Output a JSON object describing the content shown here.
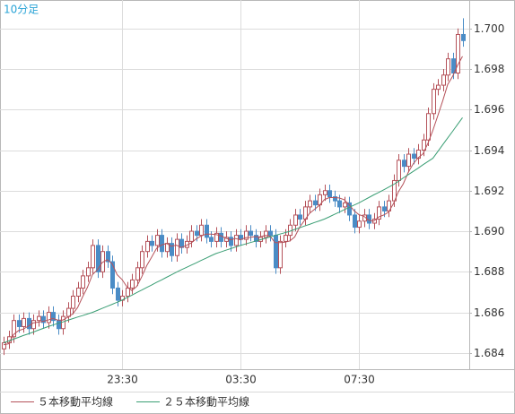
{
  "chart_data": {
    "type": "candlestick",
    "title": "10分足",
    "categories": [
      null,
      null,
      null,
      null,
      null,
      null,
      null,
      null,
      null,
      null,
      null,
      null,
      null,
      null,
      null,
      null,
      null,
      null,
      null,
      null,
      null,
      null,
      null,
      null,
      "23:30",
      null,
      null,
      null,
      null,
      null,
      null,
      null,
      null,
      null,
      null,
      null,
      null,
      null,
      null,
      null,
      null,
      null,
      null,
      null,
      null,
      null,
      null,
      null,
      "03:30",
      null,
      null,
      null,
      null,
      null,
      null,
      null,
      null,
      null,
      null,
      null,
      null,
      null,
      null,
      null,
      null,
      null,
      null,
      null,
      null,
      null,
      null,
      null,
      "07:30",
      null,
      null,
      null,
      null,
      null,
      null,
      null,
      null,
      null,
      null,
      null,
      null,
      null,
      null,
      null,
      null,
      null,
      null,
      null,
      null,
      null
    ],
    "open": [
      1.6842,
      1.6845,
      1.6848,
      1.6856,
      1.6853,
      1.6857,
      1.6852,
      1.6856,
      1.6858,
      1.6855,
      1.686,
      1.6856,
      1.6852,
      1.6858,
      1.6862,
      1.6868,
      1.6872,
      1.6878,
      1.6882,
      1.6893,
      1.688,
      1.689,
      1.6885,
      1.6872,
      1.6866,
      1.6868,
      1.6872,
      1.6876,
      1.6882,
      1.689,
      1.6895,
      1.6893,
      1.6898,
      1.689,
      1.6894,
      1.6888,
      1.6896,
      1.6892,
      1.6895,
      1.69,
      1.6898,
      1.6903,
      1.6897,
      1.6895,
      1.6899,
      1.6895,
      1.6897,
      1.6893,
      1.6898,
      1.6896,
      1.69,
      1.6898,
      1.6895,
      1.6897,
      1.69,
      1.6898,
      1.6882,
      1.6895,
      1.6898,
      1.6903,
      1.6908,
      1.6906,
      1.6912,
      1.6915,
      1.6913,
      1.6918,
      1.692,
      1.6917,
      1.6915,
      1.6912,
      1.6914,
      1.6908,
      1.6902,
      1.6905,
      1.6908,
      1.6904,
      1.6906,
      1.6912,
      1.691,
      1.6915,
      1.6925,
      1.6935,
      1.6932,
      1.6938,
      1.6936,
      1.694,
      1.6945,
      1.6958,
      1.697,
      1.6972,
      1.6977,
      1.6985,
      1.6978,
      1.6997
    ],
    "high": [
      1.6848,
      1.6851,
      1.6859,
      1.6859,
      1.686,
      1.686,
      1.6859,
      1.6861,
      1.6861,
      1.6863,
      1.6863,
      1.6859,
      1.6861,
      1.6865,
      1.6871,
      1.6875,
      1.6881,
      1.6885,
      1.6896,
      1.6896,
      1.6893,
      1.6893,
      1.6888,
      1.6875,
      1.6871,
      1.6875,
      1.6879,
      1.6885,
      1.6893,
      1.6898,
      1.6898,
      1.6901,
      1.6901,
      1.6897,
      1.6897,
      1.6899,
      1.6899,
      1.6898,
      1.6903,
      1.6903,
      1.6906,
      1.6906,
      1.69,
      1.6902,
      1.6902,
      1.69,
      1.69,
      1.6901,
      1.6901,
      1.6903,
      1.6903,
      1.6901,
      1.69,
      1.6903,
      1.6903,
      1.6901,
      1.6898,
      1.6901,
      1.6906,
      1.6911,
      1.6911,
      1.6915,
      1.6918,
      1.6918,
      1.6921,
      1.6923,
      1.6923,
      1.692,
      1.6918,
      1.6917,
      1.6917,
      1.6911,
      1.6908,
      1.6911,
      1.6911,
      1.6909,
      1.6915,
      1.6915,
      1.6918,
      1.6928,
      1.6938,
      1.6938,
      1.6941,
      1.6941,
      1.6943,
      1.6948,
      1.6961,
      1.6973,
      1.6975,
      1.698,
      1.6988,
      1.6988,
      1.7,
      1.7005
    ],
    "low": [
      1.6839,
      1.6842,
      1.6845,
      1.685,
      1.685,
      1.6849,
      1.6849,
      1.6853,
      1.6852,
      1.6852,
      1.6853,
      1.6849,
      1.6849,
      1.6855,
      1.6859,
      1.6865,
      1.6869,
      1.6875,
      1.6879,
      1.6877,
      1.6877,
      1.6882,
      1.6869,
      1.6863,
      1.6863,
      1.6865,
      1.6869,
      1.6873,
      1.6879,
      1.6887,
      1.689,
      1.689,
      1.6887,
      1.6887,
      1.6885,
      1.6885,
      1.6889,
      1.6889,
      1.6892,
      1.6895,
      1.6895,
      1.6894,
      1.6892,
      1.6892,
      1.6892,
      1.6892,
      1.689,
      1.689,
      1.6893,
      1.6893,
      1.6895,
      1.6892,
      1.6892,
      1.6894,
      1.6895,
      1.6879,
      1.6879,
      1.6892,
      1.6895,
      1.69,
      1.6903,
      1.6903,
      1.6909,
      1.691,
      1.691,
      1.6915,
      1.6914,
      1.6912,
      1.6909,
      1.6909,
      1.6905,
      1.6899,
      1.6899,
      1.6902,
      1.6901,
      1.6901,
      1.6903,
      1.6907,
      1.6907,
      1.6912,
      1.6922,
      1.6929,
      1.6929,
      1.6933,
      1.6933,
      1.6937,
      1.6942,
      1.6955,
      1.6967,
      1.6969,
      1.6974,
      1.6975,
      1.6975,
      1.6991
    ],
    "close": [
      1.6845,
      1.6848,
      1.6856,
      1.6853,
      1.6857,
      1.6852,
      1.6856,
      1.6858,
      1.6855,
      1.686,
      1.6856,
      1.6852,
      1.6858,
      1.6862,
      1.6868,
      1.6872,
      1.6878,
      1.6882,
      1.6893,
      1.688,
      1.689,
      1.6885,
      1.6872,
      1.6866,
      1.6868,
      1.6872,
      1.6876,
      1.6882,
      1.689,
      1.6895,
      1.6893,
      1.6898,
      1.689,
      1.6894,
      1.6888,
      1.6896,
      1.6892,
      1.6895,
      1.69,
      1.6898,
      1.6903,
      1.6897,
      1.6895,
      1.6899,
      1.6895,
      1.6897,
      1.6893,
      1.6898,
      1.6896,
      1.69,
      1.6898,
      1.6895,
      1.6897,
      1.69,
      1.6898,
      1.6882,
      1.6895,
      1.6898,
      1.6903,
      1.6908,
      1.6906,
      1.6912,
      1.6915,
      1.6913,
      1.6918,
      1.692,
      1.6917,
      1.6915,
      1.6912,
      1.6914,
      1.6908,
      1.6902,
      1.6905,
      1.6908,
      1.6904,
      1.6906,
      1.6912,
      1.691,
      1.6915,
      1.6925,
      1.6935,
      1.6932,
      1.6938,
      1.6936,
      1.694,
      1.6945,
      1.6958,
      1.697,
      1.6972,
      1.6977,
      1.6985,
      1.6978,
      1.6997,
      1.6994
    ],
    "up_color": "#b5525a",
    "down_color": "#4a8cc6",
    "series": [
      {
        "name": "５本移動平均線",
        "color": "#b5525a",
        "values": [
          1.6844,
          1.68445,
          1.6849,
          1.6851,
          1.68518,
          1.68532,
          1.68548,
          1.68552,
          1.68556,
          1.68562,
          1.6857,
          1.68562,
          1.68562,
          1.68576,
          1.68592,
          1.68624,
          1.68676,
          1.68724,
          1.68786,
          1.6881,
          1.68846,
          1.6886,
          1.6884,
          1.68786,
          1.68762,
          1.68726,
          1.68708,
          1.68728,
          1.68776,
          1.6883,
          1.68872,
          1.68916,
          1.68932,
          1.6894,
          1.68926,
          1.68932,
          1.6892,
          1.6893,
          1.68942,
          1.68962,
          1.68976,
          1.68986,
          1.68986,
          1.68984,
          1.68978,
          1.68966,
          1.68958,
          1.68964,
          1.68958,
          1.68968,
          1.6897,
          1.68974,
          1.68972,
          1.6898,
          1.68976,
          1.68944,
          1.68944,
          1.68946,
          1.68952,
          1.68972,
          1.6902,
          1.69054,
          1.69088,
          1.69108,
          1.69128,
          1.69156,
          1.69166,
          1.69166,
          1.69164,
          1.69156,
          1.69132,
          1.69102,
          1.69082,
          1.69074,
          1.69054,
          1.6905,
          1.6907,
          1.6908,
          1.69094,
          1.69136,
          1.69194,
          1.69234,
          1.6929,
          1.69332,
          1.69362,
          1.69382,
          1.69434,
          1.69498,
          1.6957,
          1.69644,
          1.69724,
          1.69764,
          1.69818,
          1.69862
        ]
      },
      {
        "name": "２５本移動平均線",
        "color": "#3a9e74",
        "values": [
          1.6845,
          1.68459,
          1.68468,
          1.68477,
          1.68486,
          1.68494,
          1.68503,
          1.68512,
          1.68521,
          1.6853,
          1.68538,
          1.68546,
          1.68553,
          1.68561,
          1.68569,
          1.68577,
          1.68584,
          1.68592,
          1.686,
          1.6861,
          1.6862,
          1.6863,
          1.6864,
          1.6865,
          1.6866,
          1.68673,
          1.68685,
          1.68698,
          1.6871,
          1.68723,
          1.68735,
          1.68748,
          1.6876,
          1.68773,
          1.68785,
          1.68798,
          1.6881,
          1.68821,
          1.68833,
          1.68844,
          1.68856,
          1.68867,
          1.68879,
          1.6889,
          1.68898,
          1.68906,
          1.68914,
          1.68922,
          1.6893,
          1.68937,
          1.68944,
          1.68951,
          1.68958,
          1.68965,
          1.68972,
          1.68979,
          1.68986,
          1.68993,
          1.69,
          1.69009,
          1.69017,
          1.69026,
          1.69034,
          1.69043,
          1.69051,
          1.6906,
          1.69071,
          1.69083,
          1.69094,
          1.69106,
          1.69117,
          1.69129,
          1.6914,
          1.69153,
          1.69166,
          1.69179,
          1.69191,
          1.69204,
          1.69217,
          1.6923,
          1.69246,
          1.69263,
          1.69279,
          1.69295,
          1.69311,
          1.69328,
          1.69344,
          1.6936,
          1.69393,
          1.69427,
          1.6946,
          1.69493,
          1.69527,
          1.6956
        ]
      }
    ],
    "ylim": [
      1.6832,
      1.7014
    ],
    "yticks": [
      1.684,
      1.686,
      1.688,
      {
        "value": 1.69,
        "label": "1.690"
      },
      1.692,
      1.694,
      1.696,
      1.698,
      {
        "value": 1.7,
        "label": "1.700"
      }
    ],
    "grid": true
  }
}
